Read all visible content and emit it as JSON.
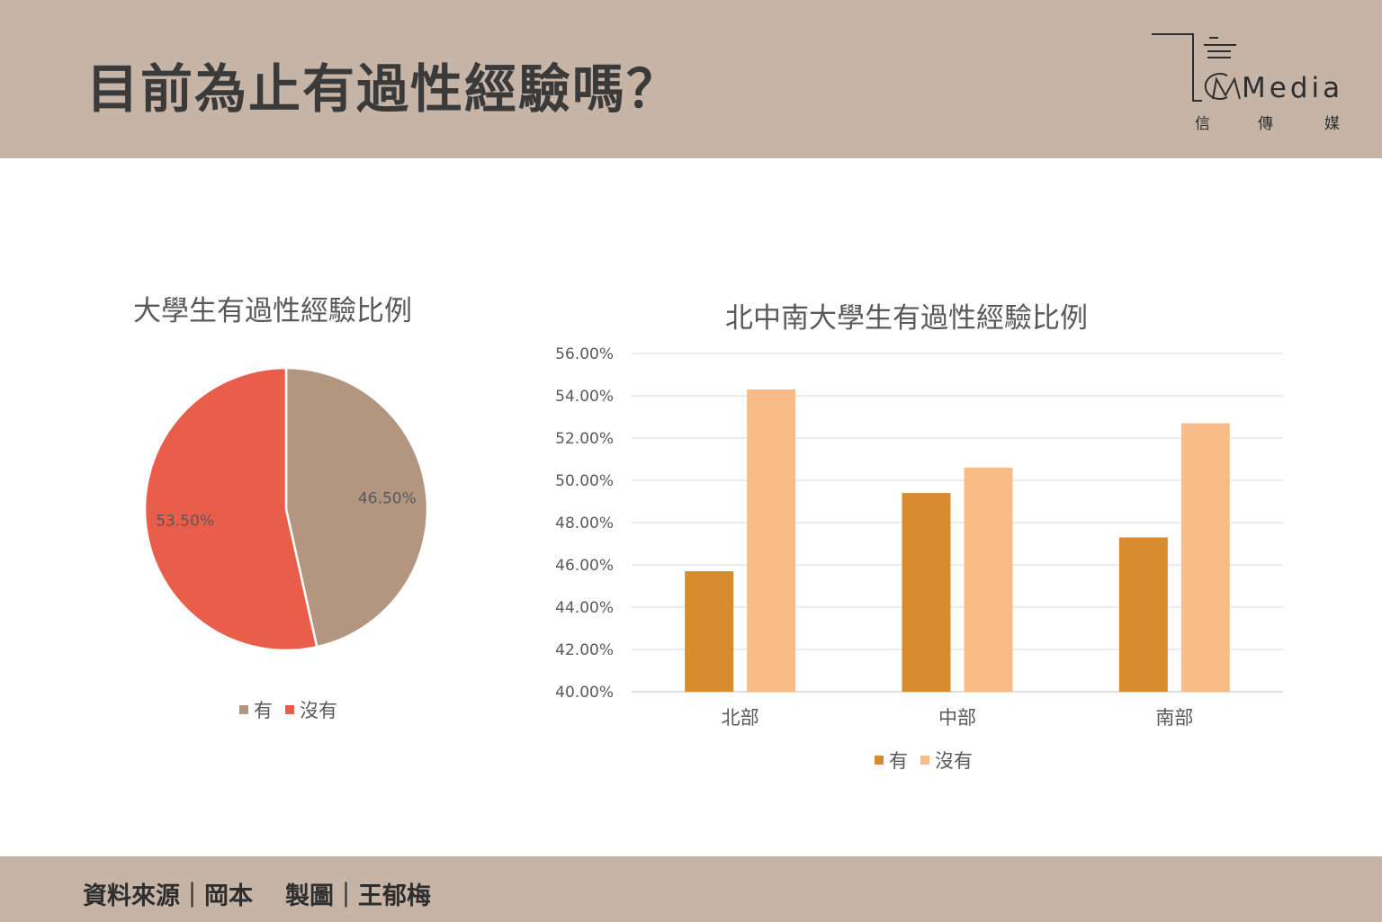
{
  "page": {
    "title": "目前為止有過性經驗嗎？"
  },
  "logo": {
    "brand": "Media",
    "chinese": [
      "信",
      "傳",
      "媒"
    ]
  },
  "footer": {
    "source_label": "資料來源｜岡本",
    "chart_label": "製圖｜王郁梅"
  },
  "colors": {
    "band": "#c6b4a7",
    "pie_yes": "#b39680",
    "pie_no": "#e95e4b",
    "bar_yes": "#d98c2e",
    "bar_no": "#f9bb88"
  },
  "chart_data": [
    {
      "type": "pie",
      "title": "大學生有過性經驗比例",
      "labels": [
        "有",
        "沒有"
      ],
      "values": [
        46.5,
        53.5
      ],
      "data_labels": [
        "46.50%",
        "53.50%"
      ],
      "legend": "bottom"
    },
    {
      "type": "bar",
      "title": "北中南大學生有過性經驗比例",
      "categories": [
        "北部",
        "中部",
        "南部"
      ],
      "series": [
        {
          "name": "有",
          "values": [
            45.7,
            49.4,
            47.3
          ]
        },
        {
          "name": "沒有",
          "values": [
            54.3,
            50.6,
            52.7
          ]
        }
      ],
      "ylim": [
        40,
        56
      ],
      "yticks": [
        "40.00%",
        "42.00%",
        "44.00%",
        "46.00%",
        "48.00%",
        "50.00%",
        "52.00%",
        "54.00%",
        "56.00%"
      ],
      "grid": true,
      "legend": "bottom"
    }
  ]
}
